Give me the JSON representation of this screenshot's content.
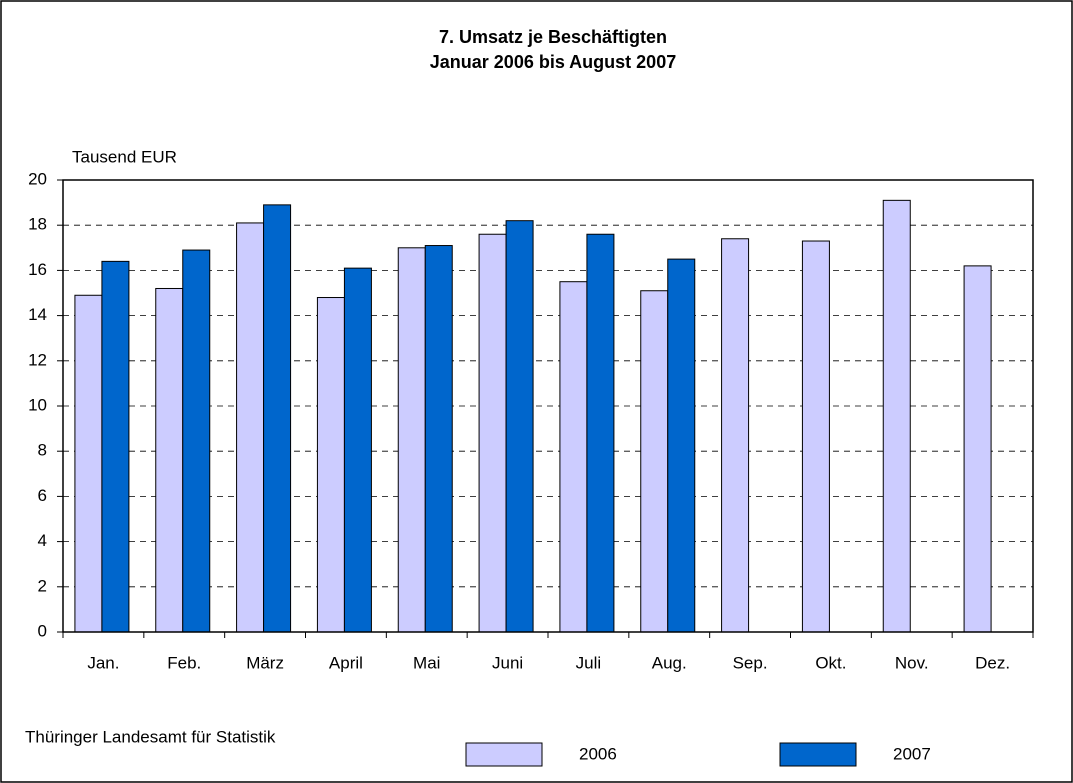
{
  "chart_data": {
    "type": "bar",
    "title": "7. Umsatz je Beschäftigten",
    "subtitle": "Januar 2006 bis August 2007",
    "y_label": "Tausend EUR",
    "source": "Thüringer Landesamt für Statistik",
    "categories": [
      "Jan.",
      "Feb.",
      "März",
      "April",
      "Mai",
      "Juni",
      "Juli",
      "Aug.",
      "Sep.",
      "Okt.",
      "Nov.",
      "Dez."
    ],
    "series": [
      {
        "name": "2006",
        "color": "#ccccff",
        "values": [
          14.9,
          15.2,
          18.1,
          14.8,
          17.0,
          17.6,
          15.5,
          15.1,
          17.4,
          17.3,
          19.1,
          16.2
        ]
      },
      {
        "name": "2007",
        "color": "#0066cc",
        "values": [
          16.4,
          16.9,
          18.9,
          16.1,
          17.1,
          18.2,
          17.6,
          16.5,
          null,
          null,
          null,
          null
        ]
      }
    ],
    "ylim": [
      0,
      20
    ],
    "yticks": [
      0,
      2,
      4,
      6,
      8,
      10,
      12,
      14,
      16,
      18,
      20
    ],
    "grid": true,
    "legend": "bottom"
  }
}
